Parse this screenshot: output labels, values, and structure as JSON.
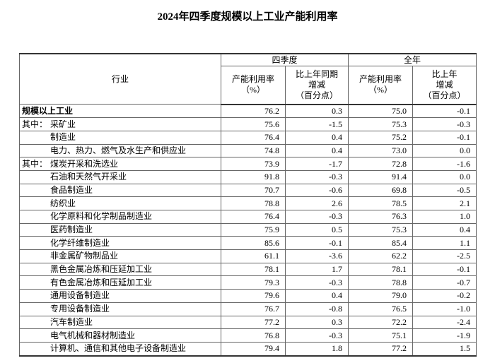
{
  "header": {
    "title": "2024年四季度规模以上工业产能利用率"
  },
  "table": {
    "columns": {
      "industry": "行业",
      "groups": [
        "四季度",
        "全年"
      ],
      "sub": [
        [
          "产能利用率",
          "（%）"
        ],
        [
          "比上年同期",
          "增减",
          "（百分点）"
        ],
        [
          "产能利用率",
          "（%）"
        ],
        [
          "比上年",
          "增减",
          "（百分点）"
        ]
      ]
    },
    "rows": [
      {
        "name": "规模以上工业",
        "bold": true,
        "values": [
          "76.2",
          "0.3",
          "75.0",
          "-0.1"
        ]
      },
      {
        "prefix": "其中：",
        "name": "采矿业",
        "values": [
          "75.6",
          "-1.5",
          "75.3",
          "-0.3"
        ]
      },
      {
        "name": "制造业",
        "values": [
          "76.4",
          "0.4",
          "75.2",
          "-0.1"
        ]
      },
      {
        "name": "电力、热力、燃气及水生产和供应业",
        "values": [
          "74.8",
          "0.4",
          "73.0",
          "0.0"
        ]
      },
      {
        "prefix": "其中：",
        "name": "煤炭开采和洗选业",
        "values": [
          "73.9",
          "-1.7",
          "72.8",
          "-1.6"
        ]
      },
      {
        "name": "石油和天然气开采业",
        "values": [
          "91.8",
          "-0.3",
          "91.4",
          "0.0"
        ]
      },
      {
        "name": "食品制造业",
        "values": [
          "70.7",
          "-0.6",
          "69.8",
          "-0.5"
        ]
      },
      {
        "name": "纺织业",
        "values": [
          "78.8",
          "2.6",
          "78.5",
          "2.1"
        ]
      },
      {
        "name": "化学原料和化学制品制造业",
        "values": [
          "76.4",
          "-0.3",
          "76.3",
          "1.0"
        ]
      },
      {
        "name": "医药制造业",
        "values": [
          "75.9",
          "0.5",
          "75.3",
          "0.4"
        ]
      },
      {
        "name": "化学纤维制造业",
        "values": [
          "85.6",
          "-0.1",
          "85.4",
          "1.1"
        ]
      },
      {
        "name": "非金属矿物制品业",
        "values": [
          "61.1",
          "-3.6",
          "62.2",
          "-2.5"
        ]
      },
      {
        "name": "黑色金属冶炼和压延加工业",
        "values": [
          "78.1",
          "1.7",
          "78.1",
          "-0.1"
        ]
      },
      {
        "name": "有色金属冶炼和压延加工业",
        "values": [
          "79.3",
          "-0.3",
          "78.8",
          "-0.7"
        ]
      },
      {
        "name": "通用设备制造业",
        "values": [
          "79.6",
          "0.4",
          "79.0",
          "-0.2"
        ]
      },
      {
        "name": "专用设备制造业",
        "values": [
          "76.7",
          "-0.8",
          "76.5",
          "-1.0"
        ]
      },
      {
        "name": "汽车制造业",
        "values": [
          "77.2",
          "0.3",
          "72.2",
          "-2.4"
        ]
      },
      {
        "name": "电气机械和器材制造业",
        "values": [
          "76.8",
          "-0.3",
          "75.1",
          "-1.9"
        ]
      },
      {
        "name": "计算机、通信和其他电子设备制造业",
        "values": [
          "79.4",
          "1.8",
          "77.2",
          "1.5"
        ]
      }
    ]
  }
}
